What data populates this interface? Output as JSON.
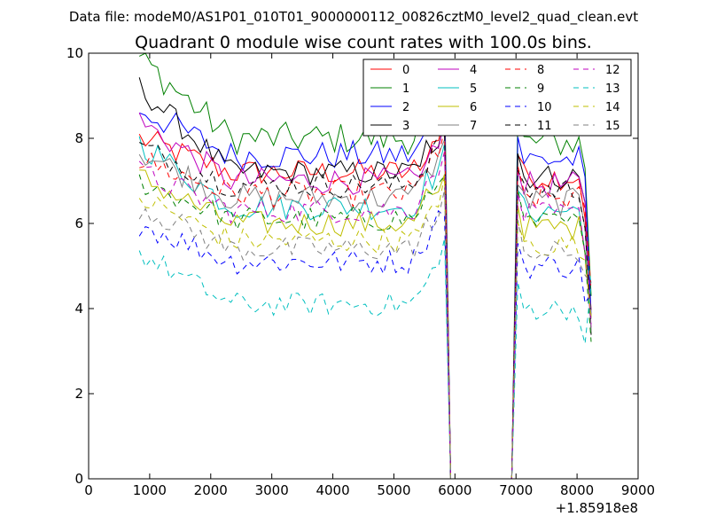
{
  "suptitle": "Data file: modeM0/AS1P01_010T01_9000000112_00826cztM0_level2_quad_clean.evt",
  "chart_data": {
    "type": "line",
    "title": "Quadrant 0 module wise count rates with 100.0s bins.",
    "xlabel": "",
    "ylabel": "",
    "xlim": [
      0,
      9000
    ],
    "ylim": [
      0,
      10
    ],
    "x_offset_label": "+1.85918e8",
    "xticks": [
      "0",
      "1000",
      "2000",
      "3000",
      "4000",
      "5000",
      "6000",
      "7000",
      "8000",
      "9000"
    ],
    "yticks": [
      "0",
      "2",
      "4",
      "6",
      "8",
      "10"
    ],
    "grid": false,
    "legend_position": "top-right",
    "legend_columns": 4,
    "x": [
      830,
      930,
      1030,
      1130,
      1230,
      1330,
      1430,
      1530,
      1630,
      1730,
      1830,
      1930,
      2030,
      2130,
      2230,
      2330,
      2430,
      2530,
      2630,
      2730,
      2830,
      2930,
      3030,
      3130,
      3230,
      3330,
      3430,
      3530,
      3630,
      3730,
      3830,
      3930,
      4030,
      4130,
      4230,
      4330,
      4430,
      4530,
      4630,
      4730,
      4830,
      4930,
      5030,
      5130,
      5230,
      5330,
      5430,
      5530,
      5630,
      5730,
      5830,
      5930,
      6030,
      6130,
      6230,
      6330,
      6430,
      6530,
      6630,
      6730,
      6830,
      6930,
      7030,
      7130,
      7230,
      7330,
      7430,
      7530,
      7630,
      7730,
      7830,
      7930,
      8030,
      8130,
      8230
    ],
    "gap_note": "",
    "series": [
      {
        "name": "0",
        "color": "#ff0000",
        "dash": "solid",
        "base": 7.2,
        "start": 8.0,
        "noise": 0.32
      },
      {
        "name": "1",
        "color": "#008000",
        "dash": "solid",
        "base": 8.0,
        "start": 9.9,
        "noise": 0.38
      },
      {
        "name": "2",
        "color": "#0000ff",
        "dash": "solid",
        "base": 7.6,
        "start": 8.7,
        "noise": 0.35
      },
      {
        "name": "3",
        "color": "#000000",
        "dash": "solid",
        "base": 7.2,
        "start": 9.2,
        "noise": 0.3
      },
      {
        "name": "4",
        "color": "#bf00bf",
        "dash": "solid",
        "base": 7.0,
        "start": 8.4,
        "noise": 0.32
      },
      {
        "name": "5",
        "color": "#00bfbf",
        "dash": "solid",
        "base": 6.4,
        "start": 7.9,
        "noise": 0.32
      },
      {
        "name": "6",
        "color": "#bfbf00",
        "dash": "solid",
        "base": 6.0,
        "start": 7.1,
        "noise": 0.3
      },
      {
        "name": "7",
        "color": "#808080",
        "dash": "solid",
        "base": 6.6,
        "start": 7.7,
        "noise": 0.33
      },
      {
        "name": "8",
        "color": "#ff0000",
        "dash": "dashed",
        "base": 6.7,
        "start": 7.5,
        "noise": 0.32
      },
      {
        "name": "9",
        "color": "#008000",
        "dash": "dashed",
        "base": 6.1,
        "start": 7.0,
        "noise": 0.3
      },
      {
        "name": "10",
        "color": "#0000ff",
        "dash": "dashed",
        "base": 5.1,
        "start": 6.0,
        "noise": 0.3
      },
      {
        "name": "11",
        "color": "#000000",
        "dash": "dashed",
        "base": 6.9,
        "start": 7.8,
        "noise": 0.3
      },
      {
        "name": "12",
        "color": "#bf00bf",
        "dash": "dashed",
        "base": 6.3,
        "start": 7.2,
        "noise": 0.3
      },
      {
        "name": "13",
        "color": "#00bfbf",
        "dash": "dashed",
        "base": 4.1,
        "start": 5.3,
        "noise": 0.28
      },
      {
        "name": "14",
        "color": "#bfbf00",
        "dash": "dashed",
        "base": 5.6,
        "start": 6.6,
        "noise": 0.3
      },
      {
        "name": "15",
        "color": "#808080",
        "dash": "dashed",
        "base": 5.4,
        "start": 6.4,
        "noise": 0.3
      }
    ]
  }
}
